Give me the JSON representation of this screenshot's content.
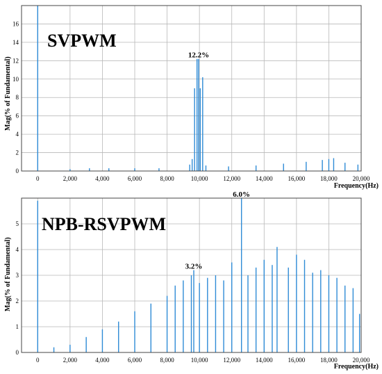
{
  "chart_data": [
    {
      "type": "bar",
      "title": "SVPWM",
      "xlabel": "Frequency(Hz)",
      "ylabel": "Mag(% of Fundamental)",
      "xlim": [
        -1000,
        20000
      ],
      "ylim": [
        0,
        18
      ],
      "x_ticks": [
        0,
        2000,
        4000,
        6000,
        8000,
        10000,
        12000,
        14000,
        16000,
        18000,
        20000
      ],
      "x_tick_labels": [
        "0",
        "2,000",
        "4,000",
        "6,000",
        "8,000",
        "10,000",
        "12,000",
        "14,000",
        "16,000",
        "18,000",
        "20,000"
      ],
      "y_ticks": [
        0,
        2,
        4,
        6,
        8,
        10,
        12,
        14,
        16
      ],
      "y_tick_labels": [
        "0",
        "2",
        "4",
        "6",
        "8",
        "10",
        "12",
        "14",
        "16"
      ],
      "grid": true,
      "color": "#2e8bd6",
      "annotations": [
        {
          "text": "12.2%",
          "x": 9950,
          "y": 12.2
        }
      ],
      "series": [
        {
          "x": [
            0,
            9550,
            9700,
            9850,
            9950,
            10050,
            10200,
            9400,
            10400,
            2000,
            3200,
            4400,
            6000,
            7500,
            11800,
            13500,
            15200,
            16600,
            17600,
            18000,
            18300,
            19000,
            19800
          ],
          "values": [
            18,
            1.3,
            9.0,
            12.2,
            12.2,
            9.0,
            10.2,
            0.7,
            0.6,
            0.2,
            0.3,
            0.3,
            0.3,
            0.3,
            0.5,
            0.6,
            0.8,
            1.0,
            1.2,
            1.3,
            1.4,
            0.9,
            0.7
          ]
        }
      ]
    },
    {
      "type": "bar",
      "title": "NPB-RSVPWM",
      "xlabel": "Frequency(Hz)",
      "ylabel": "Mag(% of Fundamental)",
      "xlim": [
        -1000,
        20000
      ],
      "ylim": [
        0,
        6
      ],
      "x_ticks": [
        0,
        2000,
        4000,
        6000,
        8000,
        10000,
        12000,
        14000,
        16000,
        18000,
        20000
      ],
      "x_tick_labels": [
        "0",
        "2,000",
        "4,000",
        "6,000",
        "8,000",
        "10,000",
        "12,000",
        "14,000",
        "16,000",
        "18,000",
        "20,000"
      ],
      "y_ticks": [
        0,
        1,
        2,
        3,
        4,
        5
      ],
      "y_tick_labels": [
        "0",
        "1",
        "2",
        "3",
        "4",
        "5"
      ],
      "grid": true,
      "color": "#2e8bd6",
      "annotations": [
        {
          "text": "6.0%",
          "x": 12600,
          "y": 6.0
        },
        {
          "text": "3.2%",
          "x": 9650,
          "y": 3.2
        }
      ],
      "series": [
        {
          "x": [
            0,
            1000,
            2000,
            3000,
            4000,
            5000,
            6000,
            7000,
            8000,
            8500,
            9000,
            9500,
            9650,
            10000,
            10500,
            11000,
            11500,
            12000,
            12600,
            13000,
            13500,
            14000,
            14500,
            14800,
            15500,
            16000,
            16500,
            17000,
            17500,
            18000,
            18500,
            19000,
            19500,
            19900
          ],
          "values": [
            5.9,
            0.2,
            0.3,
            0.6,
            0.9,
            1.2,
            1.6,
            1.9,
            2.2,
            2.6,
            2.8,
            3.0,
            3.2,
            2.7,
            2.9,
            3.0,
            2.8,
            3.5,
            6.0,
            3.0,
            3.3,
            3.6,
            3.4,
            4.1,
            3.3,
            3.8,
            3.6,
            3.1,
            3.2,
            3.0,
            2.9,
            2.6,
            2.5,
            1.5
          ]
        }
      ]
    }
  ]
}
